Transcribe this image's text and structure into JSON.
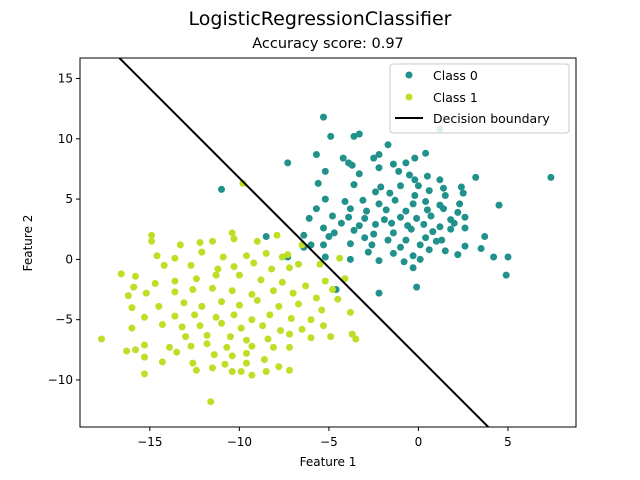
{
  "figure": {
    "suptitle": "LogisticRegressionClassifier",
    "title": "Accuracy score: 0.97"
  },
  "chart_data": {
    "type": "scatter",
    "title": "LogisticRegressionClassifier",
    "subtitle": "Accuracy score: 0.97",
    "xlabel": "Feature 1",
    "ylabel": "Feature 2",
    "xlim": [
      -18.9,
      8.8
    ],
    "ylim": [
      -13.9,
      16.7
    ],
    "xticks": [
      -15,
      -10,
      -5,
      0,
      5
    ],
    "yticks": [
      -10,
      -5,
      0,
      5,
      10,
      15
    ],
    "xtick_labels": [
      "−15",
      "−10",
      "−5",
      "0",
      "5"
    ],
    "ytick_labels": [
      "−10",
      "−5",
      "0",
      "5",
      "10",
      "15"
    ],
    "grid": false,
    "legend_position": "top-right",
    "legend": [
      "Class 0",
      "Class 1",
      "Decision boundary"
    ],
    "colors": {
      "class0": "#21918c",
      "class1": "#bddf26",
      "boundary": "#000000"
    },
    "series": [
      {
        "name": "Class 0",
        "points": [
          [
            -5.3,
            11.8
          ],
          [
            -4.9,
            10.2
          ],
          [
            -3.6,
            10.2
          ],
          [
            -3.3,
            10.4
          ],
          [
            1.2,
            10.8
          ],
          [
            -1.7,
            9.5
          ],
          [
            -5.7,
            8.7
          ],
          [
            -4.2,
            8.4
          ],
          [
            -2.5,
            8.4
          ],
          [
            -2.2,
            8.7
          ],
          [
            -3.9,
            8.0
          ],
          [
            -7.3,
            8.0
          ],
          [
            -0.7,
            8.0
          ],
          [
            -0.2,
            8.4
          ],
          [
            0.4,
            8.8
          ],
          [
            -3.7,
            7.8
          ],
          [
            -1.4,
            7.9
          ],
          [
            -5.2,
            7.3
          ],
          [
            -3.3,
            7.1
          ],
          [
            -2.2,
            7.6
          ],
          [
            -1.1,
            7.3
          ],
          [
            -0.5,
            7.0
          ],
          [
            -0.2,
            6.6
          ],
          [
            0.5,
            6.9
          ],
          [
            1.2,
            6.6
          ],
          [
            3.2,
            6.8
          ],
          [
            7.4,
            6.8
          ],
          [
            -5.6,
            6.3
          ],
          [
            -3.6,
            6.2
          ],
          [
            -2.1,
            6.0
          ],
          [
            -1.0,
            6.1
          ],
          [
            0.0,
            6.1
          ],
          [
            1.4,
            5.9
          ],
          [
            2.4,
            6.0
          ],
          [
            -2.4,
            5.6
          ],
          [
            -1.6,
            5.5
          ],
          [
            -0.2,
            5.3
          ],
          [
            0.6,
            5.7
          ],
          [
            1.5,
            5.3
          ],
          [
            2.5,
            5.5
          ],
          [
            -5.2,
            5.0
          ],
          [
            -4.1,
            4.8
          ],
          [
            -3.1,
            4.9
          ],
          [
            -2.2,
            4.6
          ],
          [
            -1.3,
            4.9
          ],
          [
            -0.3,
            4.6
          ],
          [
            0.4,
            4.8
          ],
          [
            1.2,
            4.5
          ],
          [
            2.3,
            4.6
          ],
          [
            4.5,
            4.5
          ],
          [
            -5.7,
            4.2
          ],
          [
            -3.8,
            4.2
          ],
          [
            -2.9,
            4.0
          ],
          [
            -1.8,
            4.1
          ],
          [
            -0.7,
            4.0
          ],
          [
            0.5,
            4.1
          ],
          [
            1.4,
            4.2
          ],
          [
            2.2,
            3.9
          ],
          [
            -4.8,
            3.6
          ],
          [
            -3.9,
            3.5
          ],
          [
            -3.0,
            3.4
          ],
          [
            -1.9,
            3.3
          ],
          [
            -1.0,
            3.5
          ],
          [
            -0.1,
            3.4
          ],
          [
            0.7,
            3.6
          ],
          [
            1.8,
            3.3
          ],
          [
            2.6,
            3.5
          ],
          [
            -4.3,
            3.0
          ],
          [
            -3.3,
            2.8
          ],
          [
            -2.4,
            2.9
          ],
          [
            -1.5,
            3.0
          ],
          [
            -0.6,
            2.8
          ],
          [
            0.3,
            2.9
          ],
          [
            1.2,
            2.7
          ],
          [
            2.0,
            3.0
          ],
          [
            -6.1,
            3.4
          ],
          [
            -5.3,
            2.6
          ],
          [
            -4.7,
            2.2
          ],
          [
            -3.6,
            2.4
          ],
          [
            -2.5,
            2.1
          ],
          [
            -1.4,
            2.2
          ],
          [
            -0.4,
            2.5
          ],
          [
            0.8,
            2.3
          ],
          [
            1.8,
            2.5
          ],
          [
            2.6,
            2.6
          ],
          [
            -6.4,
            2.0
          ],
          [
            -5.0,
            1.9
          ],
          [
            -3.0,
            1.8
          ],
          [
            -1.7,
            1.6
          ],
          [
            -0.7,
            1.6
          ],
          [
            0.4,
            1.8
          ],
          [
            1.3,
            1.6
          ],
          [
            -5.3,
            1.2
          ],
          [
            -3.8,
            1.3
          ],
          [
            -2.6,
            1.2
          ],
          [
            -1.0,
            1.0
          ],
          [
            0.1,
            1.2
          ],
          [
            1.0,
            1.5
          ],
          [
            2.6,
            1.1
          ],
          [
            3.7,
            1.9
          ],
          [
            -2.8,
            0.6
          ],
          [
            -1.4,
            0.5
          ],
          [
            -0.3,
            0.3
          ],
          [
            0.6,
            0.8
          ],
          [
            1.5,
            0.7
          ],
          [
            3.5,
            0.9
          ],
          [
            -3.8,
            0.0
          ],
          [
            -2.2,
            -0.1
          ],
          [
            -0.8,
            -0.2
          ],
          [
            0.1,
            0.0
          ],
          [
            2.2,
            0.4
          ],
          [
            4.2,
            0.2
          ],
          [
            5.0,
            0.2
          ],
          [
            -0.3,
            -0.7
          ],
          [
            -4.6,
            -2.5
          ],
          [
            -2.2,
            -2.8
          ],
          [
            -0.1,
            -2.3
          ],
          [
            4.9,
            -1.3
          ],
          [
            -8.5,
            1.9
          ],
          [
            -7.3,
            0.2
          ],
          [
            -6.4,
            1.0
          ],
          [
            -11.0,
            5.8
          ],
          [
            -6.0,
            1.2
          ],
          [
            -5.2,
            0.2
          ]
        ]
      },
      {
        "name": "Class 1",
        "points": [
          [
            -9.8,
            6.3
          ],
          [
            -6.5,
            1.2
          ],
          [
            -7.9,
            2.0
          ],
          [
            -7.3,
            0.4
          ],
          [
            -5.5,
            -0.4
          ],
          [
            -4.4,
            0.1
          ],
          [
            -10.4,
            2.2
          ],
          [
            -14.9,
            2.0
          ],
          [
            -14.9,
            1.5
          ],
          [
            -13.3,
            1.2
          ],
          [
            -12.2,
            1.4
          ],
          [
            -11.5,
            1.5
          ],
          [
            -10.3,
            1.7
          ],
          [
            -9.0,
            1.5
          ],
          [
            -14.6,
            0.3
          ],
          [
            -13.6,
            0.1
          ],
          [
            -12.1,
            0.6
          ],
          [
            -10.9,
            0.2
          ],
          [
            -9.6,
            0.3
          ],
          [
            -8.5,
            0.5
          ],
          [
            -7.6,
            0.2
          ],
          [
            -16.6,
            -1.2
          ],
          [
            -15.8,
            -1.4
          ],
          [
            -14.2,
            -0.5
          ],
          [
            -12.7,
            -0.5
          ],
          [
            -11.2,
            -0.8
          ],
          [
            -10.3,
            -0.6
          ],
          [
            -9.2,
            -0.3
          ],
          [
            -8.2,
            -0.8
          ],
          [
            -7.2,
            -0.7
          ],
          [
            -6.7,
            -0.4
          ],
          [
            -15.9,
            -2.3
          ],
          [
            -14.7,
            -2.0
          ],
          [
            -13.6,
            -1.8
          ],
          [
            -12.4,
            -1.6
          ],
          [
            -11.3,
            -1.3
          ],
          [
            -10.0,
            -1.3
          ],
          [
            -8.8,
            -1.7
          ],
          [
            -7.6,
            -1.9
          ],
          [
            -6.3,
            -2.2
          ],
          [
            -5.2,
            -1.8
          ],
          [
            -4.8,
            -2.5
          ],
          [
            -4.1,
            -1.6
          ],
          [
            -16.2,
            -3.0
          ],
          [
            -15.2,
            -2.8
          ],
          [
            -13.6,
            -2.7
          ],
          [
            -12.6,
            -2.5
          ],
          [
            -11.5,
            -2.4
          ],
          [
            -10.4,
            -2.6
          ],
          [
            -9.3,
            -2.9
          ],
          [
            -8.1,
            -2.6
          ],
          [
            -7.0,
            -2.8
          ],
          [
            -5.7,
            -3.2
          ],
          [
            -4.5,
            -3.3
          ],
          [
            -16.0,
            -4.0
          ],
          [
            -14.5,
            -3.9
          ],
          [
            -13.1,
            -3.6
          ],
          [
            -12.1,
            -3.9
          ],
          [
            -11.0,
            -3.5
          ],
          [
            -10.0,
            -3.8
          ],
          [
            -9.0,
            -3.4
          ],
          [
            -7.8,
            -3.9
          ],
          [
            -6.7,
            -3.7
          ],
          [
            -5.4,
            -4.2
          ],
          [
            -15.3,
            -4.8
          ],
          [
            -13.6,
            -4.7
          ],
          [
            -12.5,
            -4.6
          ],
          [
            -11.3,
            -4.8
          ],
          [
            -10.3,
            -4.6
          ],
          [
            -9.3,
            -5.0
          ],
          [
            -8.3,
            -4.6
          ],
          [
            -7.1,
            -4.9
          ],
          [
            -6.0,
            -5.0
          ],
          [
            -3.8,
            -4.4
          ],
          [
            -16.0,
            -5.7
          ],
          [
            -14.3,
            -5.4
          ],
          [
            -13.2,
            -5.6
          ],
          [
            -12.2,
            -5.5
          ],
          [
            -11.0,
            -5.3
          ],
          [
            -9.9,
            -5.7
          ],
          [
            -8.7,
            -5.5
          ],
          [
            -7.7,
            -5.9
          ],
          [
            -6.5,
            -5.8
          ],
          [
            -5.3,
            -5.5
          ],
          [
            -13.0,
            -6.4
          ],
          [
            -11.8,
            -6.3
          ],
          [
            -10.5,
            -6.4
          ],
          [
            -9.6,
            -6.7
          ],
          [
            -8.4,
            -6.6
          ],
          [
            -7.2,
            -6.2
          ],
          [
            -6.0,
            -6.5
          ],
          [
            -4.9,
            -6.4
          ],
          [
            -3.7,
            -6.2
          ],
          [
            -17.7,
            -6.6
          ],
          [
            -15.3,
            -7.1
          ],
          [
            -13.9,
            -7.3
          ],
          [
            -12.7,
            -7.2
          ],
          [
            -11.8,
            -7.0
          ],
          [
            -10.7,
            -7.3
          ],
          [
            -9.3,
            -7.2
          ],
          [
            -8.1,
            -7.3
          ],
          [
            -7.2,
            -7.3
          ],
          [
            -3.5,
            -6.6
          ],
          [
            -15.8,
            -7.5
          ],
          [
            -13.5,
            -7.7
          ],
          [
            -11.4,
            -7.9
          ],
          [
            -10.4,
            -8.0
          ],
          [
            -9.6,
            -7.8
          ],
          [
            -8.6,
            -8.3
          ],
          [
            -15.3,
            -8.1
          ],
          [
            -14.3,
            -8.5
          ],
          [
            -12.6,
            -8.6
          ],
          [
            -10.8,
            -8.7
          ],
          [
            -9.6,
            -8.6
          ],
          [
            -16.3,
            -7.6
          ],
          [
            -11.5,
            -9.0
          ],
          [
            -7.8,
            -8.9
          ],
          [
            -15.3,
            -9.5
          ],
          [
            -12.4,
            -9.2
          ],
          [
            -10.4,
            -9.3
          ],
          [
            -9.9,
            -9.3
          ],
          [
            -8.5,
            -9.3
          ],
          [
            -9.3,
            -9.6
          ],
          [
            -7.2,
            -9.2
          ],
          [
            -11.6,
            -11.8
          ]
        ]
      },
      {
        "name": "Decision boundary",
        "line": [
          [
            -16.7,
            16.7
          ],
          [
            3.9,
            -13.9
          ]
        ]
      }
    ]
  }
}
